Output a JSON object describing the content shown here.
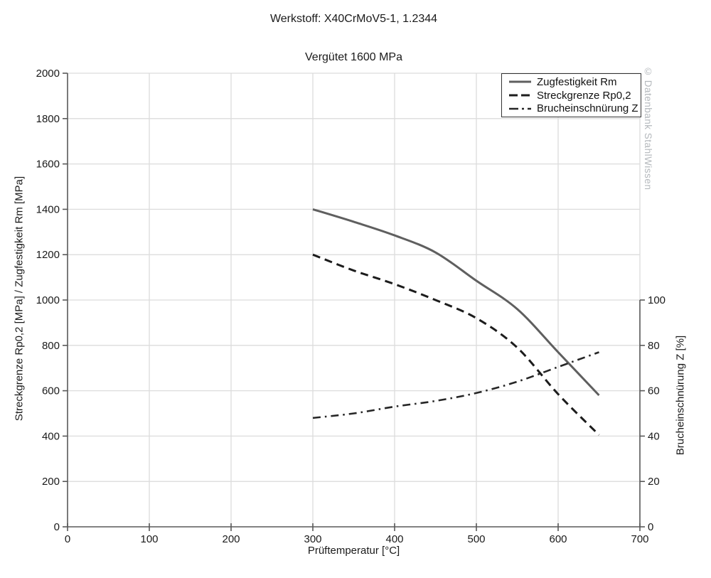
{
  "titles": {
    "material": "Werkstoff: X40CrMoV5-1, 1.2344",
    "condition": "Vergütet 1600 MPa"
  },
  "watermark": "© Datenbank StahlWissen",
  "chart_data": {
    "type": "line",
    "title": "Vergütet 1600 MPa",
    "xlabel": "Prüftemperatur [°C]",
    "ylabel_left": "Streckgrenze Rp0,2 [MPa] / Zugfestigkeit Rm [MPa]",
    "ylabel_right": "Brucheinschnürung Z [%]",
    "grid": true,
    "legend_position": "top-right",
    "x_axis": {
      "min": 0,
      "max": 700,
      "ticks": [
        0,
        100,
        200,
        300,
        400,
        500,
        600,
        700
      ]
    },
    "y_left_axis": {
      "min": 0,
      "max": 2000,
      "ticks": [
        0,
        200,
        400,
        600,
        800,
        1000,
        1200,
        1400,
        1600,
        1800,
        2000
      ]
    },
    "y_right_axis": {
      "min": 0,
      "max": 200,
      "ticks": [
        0,
        20,
        40,
        60,
        80,
        100
      ]
    },
    "x": [
      300,
      350,
      400,
      450,
      500,
      550,
      600,
      650
    ],
    "series": [
      {
        "name": "Zugfestigkeit Rm",
        "axis": "left",
        "style": "solid",
        "color": "#5f5f5f",
        "width": 3,
        "dash": "",
        "values": [
          1400,
          1345,
          1285,
          1210,
          1085,
          960,
          770,
          580
        ]
      },
      {
        "name": "Streckgrenze Rp0,2",
        "axis": "left",
        "style": "dashed",
        "color": "#1c1c1c",
        "width": 3,
        "dash": "11,7",
        "values": [
          1200,
          1130,
          1070,
          1000,
          920,
          790,
          585,
          405
        ]
      },
      {
        "name": "Brucheinschnürung Z",
        "axis": "right",
        "style": "dashdot",
        "color": "#262626",
        "width": 2.6,
        "dash": "11,6,2.5,6",
        "values": [
          48,
          50,
          53,
          55.5,
          59,
          64,
          70.5,
          77
        ]
      }
    ],
    "colors": {
      "gridline": "#dcdcdc",
      "spine": "#595959",
      "tick_text": "#1a1a1a",
      "background": "#ffffff"
    }
  }
}
